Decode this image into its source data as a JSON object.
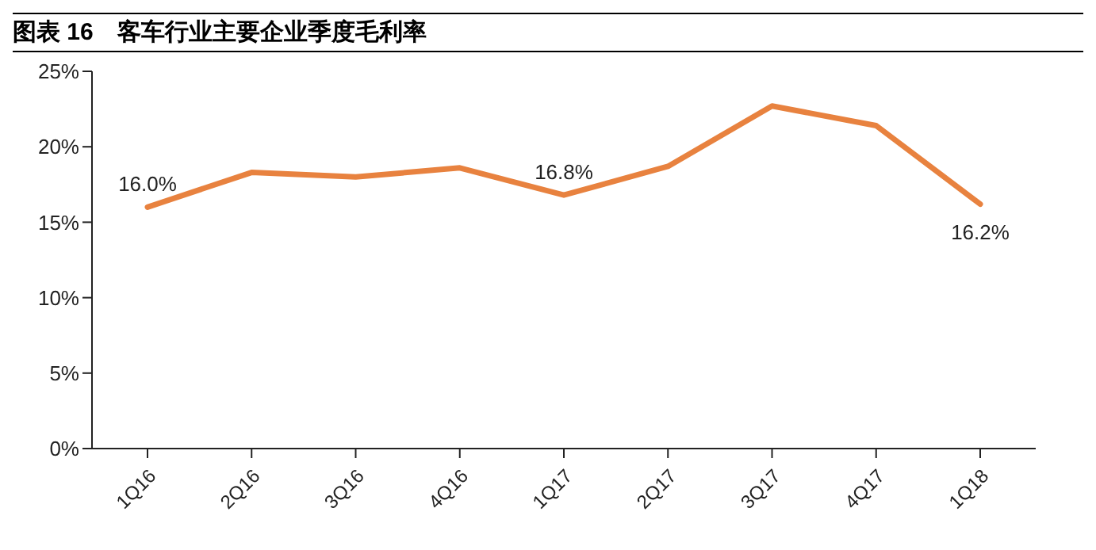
{
  "chart_data": {
    "type": "line",
    "title": "图表 16　客车行业主要企业季度毛利率",
    "categories": [
      "1Q16",
      "2Q16",
      "3Q16",
      "4Q16",
      "1Q17",
      "2Q17",
      "3Q17",
      "4Q17",
      "1Q18"
    ],
    "series": [
      {
        "color": "#e8823f",
        "values": [
          16.0,
          18.3,
          18.0,
          18.6,
          16.8,
          18.7,
          22.7,
          21.4,
          16.2
        ],
        "value_labels": [
          "16.0%",
          null,
          null,
          null,
          "16.8%",
          null,
          null,
          null,
          "16.2%"
        ]
      }
    ],
    "ylim": [
      0,
      25
    ],
    "yticks": [
      {
        "value": 0,
        "label": "0%"
      },
      {
        "value": 5,
        "label": "5%"
      },
      {
        "value": 10,
        "label": "10%"
      },
      {
        "value": 15,
        "label": "15%"
      },
      {
        "value": 20,
        "label": "20%"
      },
      {
        "value": 25,
        "label": "25%"
      }
    ],
    "grid": false,
    "legend": false,
    "marker": "none",
    "line_style": "solid"
  }
}
